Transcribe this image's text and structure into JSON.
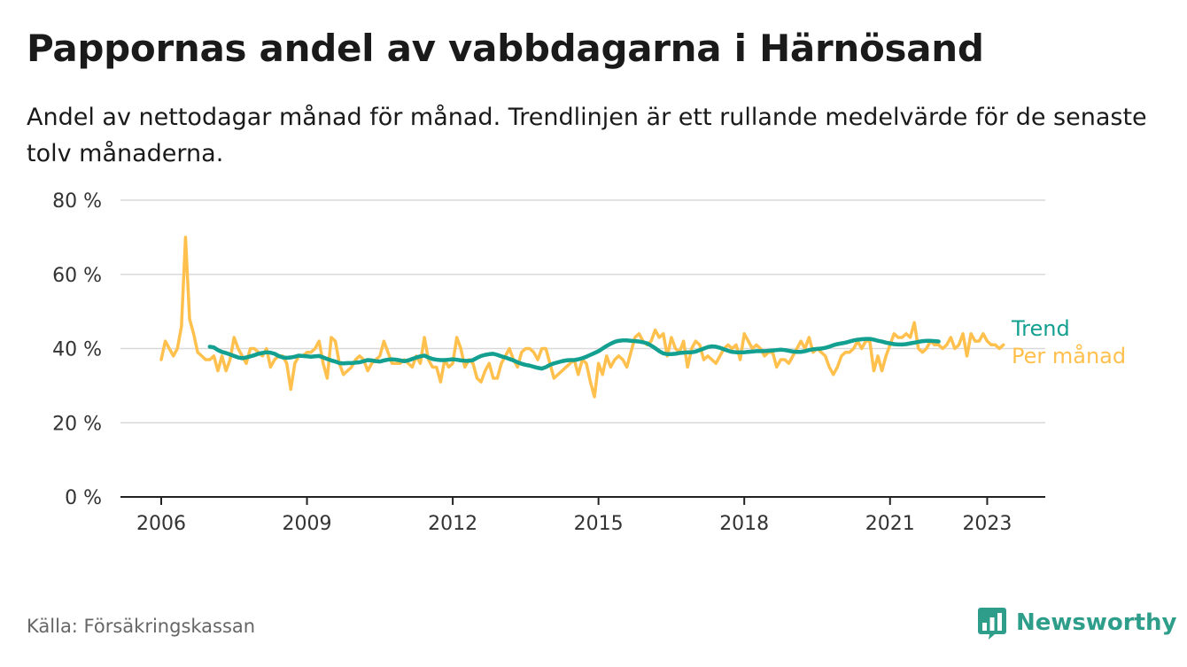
{
  "header": {
    "title": "Pappornas andel av vabbdagarna i Härnösand",
    "subtitle": "Andel av nettodagar månad för månad. Trendlinjen är ett rullande medelvärde för de senaste tolv månaderna."
  },
  "footer": {
    "source": "Källa: Försäkringskassan",
    "brand": "Newsworthy",
    "brand_icon": "bar-chart-speech-bubble-icon"
  },
  "colors": {
    "monthly": "#ffc04d",
    "trend": "#13a090",
    "grid": "#d9d9d9",
    "axis": "#222222",
    "text": "#333333"
  },
  "chart_data": {
    "type": "line",
    "title": "Pappornas andel av vabbdagarna i Härnösand",
    "xlabel": "",
    "ylabel": "",
    "x_start": "2006-01",
    "x_end": "2023-05",
    "x_ticks": [
      2006,
      2009,
      2012,
      2015,
      2018,
      2021,
      2023
    ],
    "x_tick_labels": [
      "2006",
      "2009",
      "2012",
      "2015",
      "2018",
      "2021",
      "2023"
    ],
    "ylim": [
      0,
      80
    ],
    "y_ticks": [
      0,
      20,
      40,
      60,
      80
    ],
    "y_tick_labels": [
      "0 %",
      "20 %",
      "40 %",
      "60 %",
      "80 %"
    ],
    "grid": true,
    "legend": "inline-right",
    "series": [
      {
        "name": "Per månad",
        "start": "2006-01",
        "values": [
          37,
          42,
          40,
          38,
          40,
          46,
          70,
          48,
          44,
          39,
          38,
          37,
          37,
          38,
          34,
          38,
          34,
          37,
          43,
          40,
          38,
          36,
          40,
          40,
          39,
          38,
          40,
          35,
          37,
          38,
          38,
          36,
          29,
          36,
          38,
          38,
          39,
          39,
          40,
          42,
          36,
          32,
          43,
          42,
          36,
          33,
          34,
          35,
          37,
          38,
          37,
          34,
          36,
          37,
          38,
          42,
          39,
          36,
          36,
          36,
          37,
          36,
          35,
          38,
          36,
          43,
          37,
          35,
          35,
          31,
          37,
          35,
          36,
          43,
          40,
          35,
          37,
          36,
          32,
          31,
          34,
          36,
          32,
          32,
          36,
          38,
          40,
          37,
          35,
          39,
          40,
          40,
          39,
          37,
          40,
          40,
          36,
          32,
          33,
          34,
          35,
          36,
          37,
          33,
          37,
          36,
          31,
          27,
          36,
          33,
          38,
          35,
          37,
          38,
          37,
          35,
          39,
          43,
          44,
          42,
          41,
          42,
          45,
          43,
          44,
          38,
          43,
          40,
          39,
          42,
          35,
          40,
          42,
          41,
          37,
          38,
          37,
          36,
          38,
          40,
          41,
          40,
          41,
          37,
          44,
          42,
          40,
          41,
          40,
          38,
          39,
          39,
          35,
          37,
          37,
          36,
          38,
          40,
          42,
          40,
          43,
          39,
          40,
          39,
          38,
          35,
          33,
          35,
          38,
          39,
          39,
          40,
          42,
          40,
          42,
          42,
          34,
          38,
          34,
          38,
          41,
          44,
          43,
          43,
          44,
          43,
          47,
          40,
          39,
          40,
          42,
          41,
          41,
          40,
          41,
          43,
          40,
          41,
          44,
          38,
          44,
          42,
          42,
          44,
          42,
          41,
          41,
          40,
          41
        ]
      },
      {
        "name": "Trend",
        "start": "2007-01",
        "values": [
          40.5,
          40.3,
          39.6,
          39.1,
          38.8,
          38.4,
          38.0,
          37.6,
          37.4,
          37.6,
          37.9,
          38.2,
          38.6,
          38.8,
          39.0,
          38.9,
          38.6,
          38.0,
          37.6,
          37.5,
          37.6,
          37.8,
          38.1,
          38.0,
          37.9,
          37.8,
          37.9,
          38.0,
          37.6,
          37.2,
          36.8,
          36.5,
          36.1,
          36.0,
          36.1,
          36.1,
          36.2,
          36.3,
          36.6,
          36.9,
          36.8,
          36.6,
          36.5,
          36.8,
          37.0,
          37.1,
          37.0,
          36.8,
          36.6,
          36.8,
          37.2,
          37.6,
          37.9,
          38.1,
          37.6,
          37.2,
          37.0,
          36.9,
          36.9,
          37.0,
          37.1,
          37.0,
          36.8,
          36.7,
          36.7,
          36.9,
          37.5,
          38.0,
          38.3,
          38.5,
          38.6,
          38.3,
          37.9,
          37.6,
          37.2,
          36.8,
          36.3,
          35.9,
          35.6,
          35.4,
          35.1,
          34.8,
          34.6,
          35.0,
          35.6,
          36.0,
          36.3,
          36.6,
          36.8,
          36.9,
          36.9,
          37.1,
          37.4,
          37.8,
          38.3,
          38.8,
          39.3,
          40.0,
          40.7,
          41.3,
          41.8,
          42.1,
          42.2,
          42.2,
          42.1,
          42.0,
          41.9,
          41.7,
          41.4,
          40.8,
          40.1,
          39.3,
          38.7,
          38.5,
          38.5,
          38.6,
          38.8,
          38.9,
          39.0,
          39.0,
          39.2,
          39.6,
          40.0,
          40.4,
          40.6,
          40.5,
          40.2,
          39.8,
          39.4,
          39.1,
          39.0,
          39.0,
          39.0,
          39.1,
          39.2,
          39.3,
          39.3,
          39.3,
          39.4,
          39.5,
          39.6,
          39.7,
          39.6,
          39.4,
          39.2,
          39.1,
          39.1,
          39.3,
          39.6,
          39.8,
          39.9,
          40.0,
          40.2,
          40.5,
          40.9,
          41.2,
          41.4,
          41.6,
          41.9,
          42.2,
          42.4,
          42.5,
          42.6,
          42.6,
          42.4,
          42.1,
          41.9,
          41.6,
          41.4,
          41.2,
          41.1,
          41.1,
          41.2,
          41.4,
          41.6,
          41.8,
          42.0,
          42.1,
          42.1,
          42.0,
          41.9
        ]
      }
    ]
  }
}
